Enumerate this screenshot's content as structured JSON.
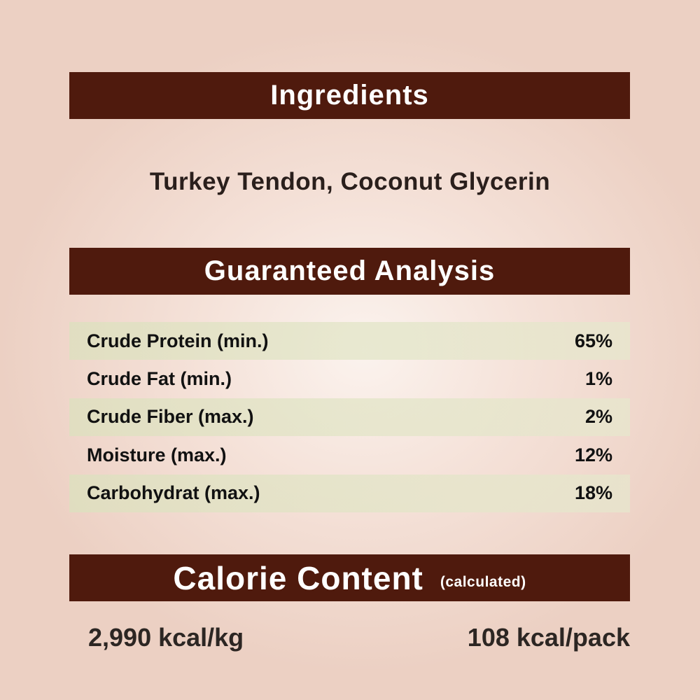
{
  "ingredients": {
    "heading": "Ingredients",
    "text": "Turkey Tendon, Coconut Glycerin"
  },
  "analysis": {
    "heading": "Guaranteed Analysis",
    "rows": [
      {
        "label": "Crude Protein (min.)",
        "value": "65%"
      },
      {
        "label": "Crude Fat (min.)",
        "value": "1%"
      },
      {
        "label": "Crude Fiber (max.)",
        "value": "2%"
      },
      {
        "label": "Moisture (max.)",
        "value": "12%"
      },
      {
        "label": "Carbohydrat (max.)",
        "value": "18%"
      }
    ]
  },
  "calorie": {
    "heading": "Calorie Content",
    "note": "(calculated)",
    "per_kg": "2,990 kcal/kg",
    "per_pack": "108 kcal/pack"
  },
  "colors": {
    "banner": "#4f1a0d",
    "row_shade": "#dfe2c4",
    "background": "#f0d5c9"
  }
}
